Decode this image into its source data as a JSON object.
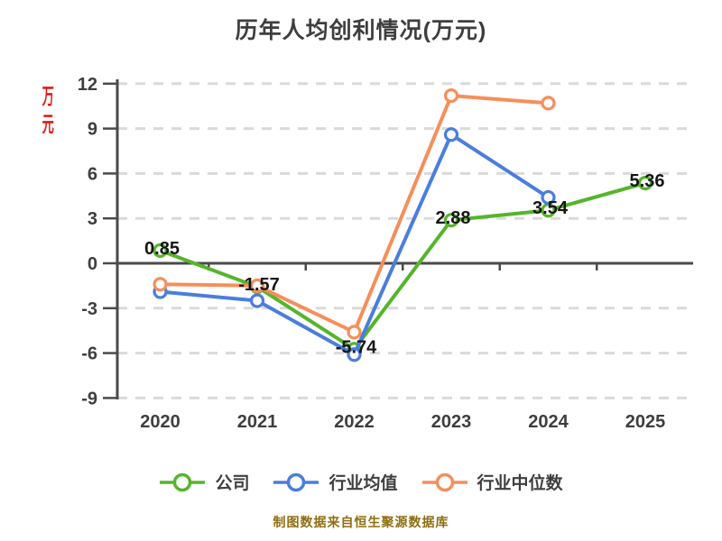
{
  "title": "历年人均创利情况(万元)",
  "footer": "制图数据来自恒生聚源数据库",
  "y_axis_unit": "万元",
  "colors": {
    "company": "#56B42C",
    "industry_avg": "#4A7EDD",
    "industry_median": "#F68E5B",
    "axis": "#4A4A4A",
    "grid": "#DADADA",
    "tick_text": "#3E3E3E",
    "value_label": "#151515",
    "unit_label": "#E21818",
    "footer_text": "#8F6E11",
    "marker_fill": "#FFFFFF"
  },
  "chart_data": {
    "type": "line",
    "title": "历年人均创利情况(万元)",
    "ylabel": "万元",
    "xlabel": "",
    "categories": [
      "2020",
      "2021",
      "2022",
      "2023",
      "2024",
      "2025"
    ],
    "series": [
      {
        "name": "公司",
        "color": "#56B42C",
        "values": [
          0.85,
          -1.57,
          -5.74,
          2.88,
          3.54,
          5.36
        ],
        "point_labels": [
          "0.85",
          "-1.57",
          "-5.74",
          "2.88",
          "3.54",
          "5.36"
        ]
      },
      {
        "name": "行业均值",
        "color": "#4A7EDD",
        "values": [
          -1.9,
          -2.5,
          -6.1,
          8.6,
          4.4,
          null
        ],
        "point_labels": null
      },
      {
        "name": "行业中位数",
        "color": "#F68E5B",
        "values": [
          -1.4,
          -1.5,
          -4.6,
          11.2,
          10.7,
          null
        ],
        "point_labels": null
      }
    ],
    "y_ticks": [
      12,
      9,
      6,
      3,
      0,
      -3,
      -6,
      -9
    ],
    "ylim": [
      -9,
      12
    ],
    "grid": "horizontal-dashed",
    "legend_position": "bottom"
  }
}
